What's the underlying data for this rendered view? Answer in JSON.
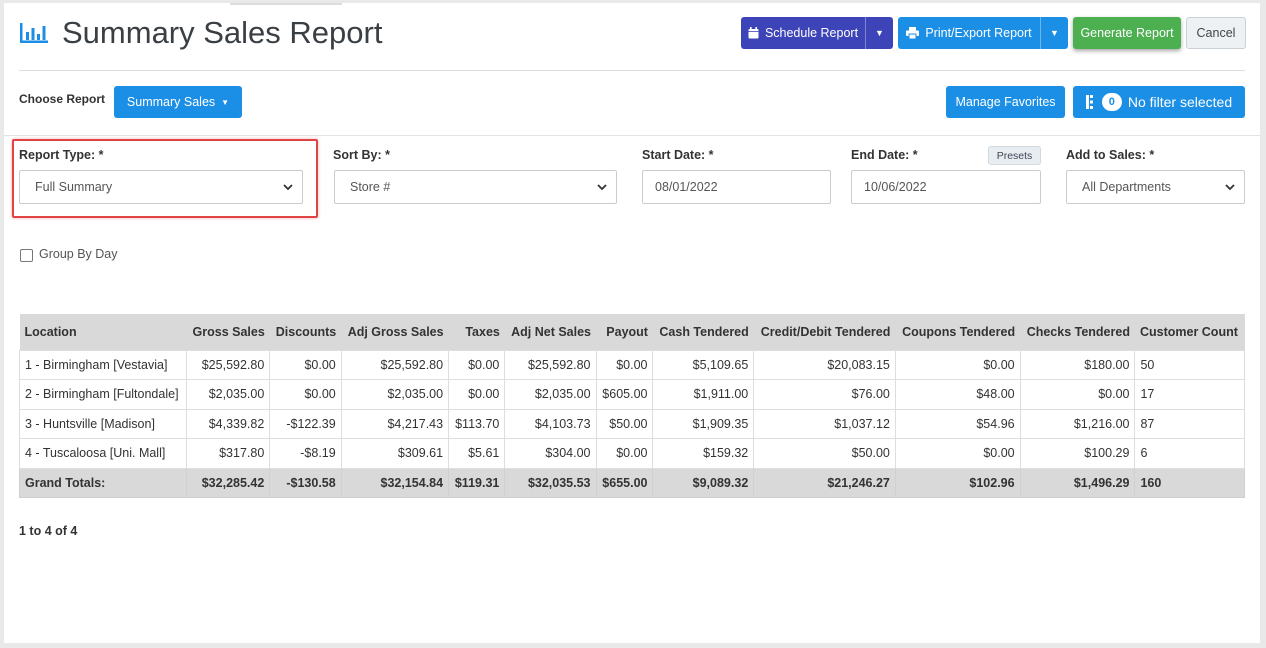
{
  "header": {
    "title": "Summary Sales Report",
    "schedule_label": "Schedule Report",
    "print_label": "Print/Export Report",
    "generate_label": "Generate Report",
    "cancel_label": "Cancel"
  },
  "choose": {
    "label": "Choose Report",
    "report_label": "Summary Sales",
    "manage_favorites_label": "Manage Favorites",
    "filter_count": "0",
    "filter_label": "No filter selected"
  },
  "filters": {
    "report_type_label": "Report Type: *",
    "report_type_value": "Full Summary",
    "sort_by_label": "Sort By: *",
    "sort_by_value": "Store #",
    "start_date_label": "Start Date: *",
    "start_date_value": "08/01/2022",
    "end_date_label": "End Date: *",
    "end_date_value": "10/06/2022",
    "presets_label": "Presets",
    "add_to_sales_label": "Add to Sales: *",
    "add_to_sales_value": "All Departments",
    "group_by_day_label": "Group By Day"
  },
  "table": {
    "columns": [
      "Location",
      "Gross Sales",
      "Discounts",
      "Adj Gross Sales",
      "Taxes",
      "Adj Net Sales",
      "Payout",
      "Cash Tendered",
      "Credit/Debit Tendered",
      "Coupons Tendered",
      "Checks Tendered",
      "Customer Count"
    ],
    "rows": [
      [
        "1 - Birmingham [Vestavia]",
        "$25,592.80",
        "$0.00",
        "$25,592.80",
        "$0.00",
        "$25,592.80",
        "$0.00",
        "$5,109.65",
        "$20,083.15",
        "$0.00",
        "$180.00",
        "50"
      ],
      [
        "2 - Birmingham [Fultondale]",
        "$2,035.00",
        "$0.00",
        "$2,035.00",
        "$0.00",
        "$2,035.00",
        "$605.00",
        "$1,911.00",
        "$76.00",
        "$48.00",
        "$0.00",
        "17"
      ],
      [
        "3 - Huntsville [Madison]",
        "$4,339.82",
        "-$122.39",
        "$4,217.43",
        "$113.70",
        "$4,103.73",
        "$50.00",
        "$1,909.35",
        "$1,037.12",
        "$54.96",
        "$1,216.00",
        "87"
      ],
      [
        "4 - Tuscaloosa [Uni. Mall]",
        "$317.80",
        "-$8.19",
        "$309.61",
        "$5.61",
        "$304.00",
        "$0.00",
        "$159.32",
        "$50.00",
        "$0.00",
        "$100.29",
        "6"
      ]
    ],
    "totals": [
      "Grand Totals:",
      "$32,285.42",
      "-$130.58",
      "$32,154.84",
      "$119.31",
      "$32,035.53",
      "$655.00",
      "$9,089.32",
      "$21,246.27",
      "$102.96",
      "$1,496.29",
      "160"
    ]
  },
  "pager": {
    "text": "1 to 4 of 4"
  },
  "colors": {
    "indigo": "#3d44b8",
    "blue": "#1b8fe6",
    "green": "#4caf50",
    "highlight": "#e04545"
  },
  "icons": [
    "bar-chart-icon",
    "calendar-icon",
    "printer-icon",
    "caret-down-icon",
    "filter-icon",
    "chevron-down-icon"
  ]
}
